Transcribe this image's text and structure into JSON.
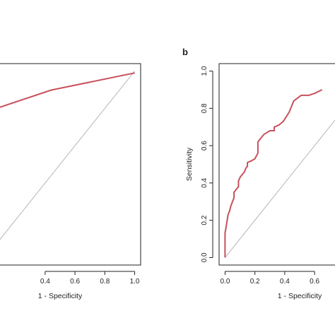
{
  "chart_data": [
    {
      "type": "line",
      "panel_label": "",
      "xlabel": "1 - Specificity",
      "ylabel": "",
      "xlim": [
        0,
        1
      ],
      "ylim": [
        0,
        1
      ],
      "x_ticks": [
        "0.4",
        "0.6",
        "0.8",
        "1.0"
      ],
      "y_ticks": [],
      "grid": false,
      "series": [
        {
          "color": "#c8505c",
          "x": [
            0.0,
            0.44,
            1.0
          ],
          "y": [
            0.78,
            0.898,
            0.99
          ]
        }
      ],
      "reference_line": {
        "color": "#b0b0b0",
        "x": [
          0,
          1
        ],
        "y": [
          0,
          1
        ]
      }
    },
    {
      "type": "line",
      "panel_label": "b",
      "xlabel": "1 - Specificity",
      "ylabel": "Sensitivity",
      "xlim": [
        0,
        1
      ],
      "ylim": [
        0,
        1
      ],
      "x_ticks": [
        "0.0",
        "0.2",
        "0.4",
        "0.6"
      ],
      "y_ticks": [
        "0.0",
        "0.2",
        "0.4",
        "0.6",
        "0.8",
        "1.0"
      ],
      "grid": false,
      "series": [
        {
          "color": "#c8505c",
          "x": [
            0.0,
            0.0,
            0.01,
            0.02,
            0.03,
            0.04,
            0.05,
            0.06,
            0.06,
            0.08,
            0.09,
            0.09,
            0.1,
            0.11,
            0.13,
            0.14,
            0.15,
            0.15,
            0.18,
            0.2,
            0.22,
            0.22,
            0.26,
            0.3,
            0.33,
            0.33,
            0.36,
            0.39,
            0.43,
            0.46,
            0.51,
            0.56,
            0.6,
            0.65
          ],
          "y": [
            0.0,
            0.13,
            0.18,
            0.23,
            0.25,
            0.28,
            0.3,
            0.32,
            0.35,
            0.37,
            0.38,
            0.41,
            0.43,
            0.44,
            0.46,
            0.48,
            0.49,
            0.51,
            0.52,
            0.53,
            0.56,
            0.62,
            0.66,
            0.68,
            0.68,
            0.7,
            0.71,
            0.73,
            0.78,
            0.84,
            0.87,
            0.87,
            0.88,
            0.9
          ]
        }
      ],
      "reference_line": {
        "color": "#b0b0b0",
        "x": [
          0,
          1
        ],
        "y": [
          0,
          1
        ]
      }
    }
  ]
}
